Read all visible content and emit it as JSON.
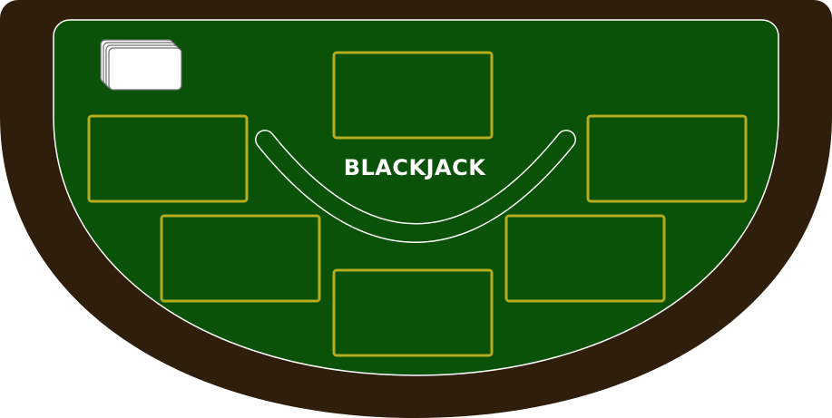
{
  "table": {
    "title": "BLACKJACK",
    "colors": {
      "rail": "#2e1e0b",
      "felt": "#0a5208",
      "felt_outline": "#ffffff",
      "spot_outline": "#b5ad1f",
      "text": "#ffffff",
      "card_face": "#ffffff",
      "card_edge": "#6f6f6f"
    }
  },
  "dealer": {
    "spot_label": "dealer-card-area"
  },
  "player_spots": [
    {
      "id": "spot-1"
    },
    {
      "id": "spot-2"
    },
    {
      "id": "spot-3"
    },
    {
      "id": "spot-4"
    },
    {
      "id": "spot-5"
    }
  ],
  "deck": {
    "icon": "card-deck-icon",
    "stacked_cards": 3
  }
}
